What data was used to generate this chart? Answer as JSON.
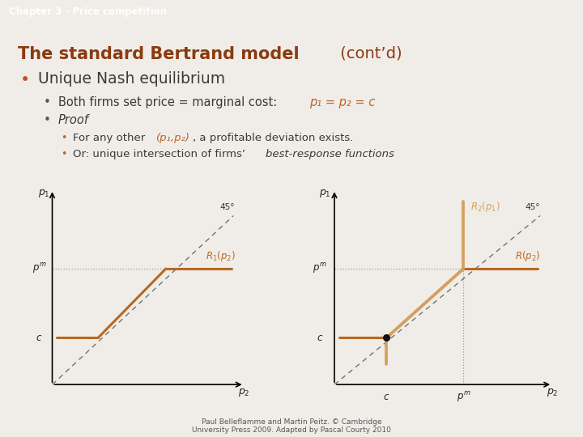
{
  "bg_color": "#f0ede8",
  "header_bg": "#c0522a",
  "header_text": "Chapter 3 - Price competition",
  "header_text_color": "#ffffff",
  "title_bold": "The standard Bertrand model",
  "title_normal": " (cont’d)",
  "title_color": "#8b3a10",
  "bullet1_text": "Unique Nash equilibrium",
  "bullet2a_text": "Both firms set price = marginal cost: ",
  "bullet2a_math": "p₁ = p₂ = c",
  "bullet2b_text": "Proof",
  "bullet3a_text": "For any other ",
  "bullet3a_math": "(p₁,p₂)",
  "bullet3a_text2": ", a profitable deviation exists.",
  "bullet3b_text": "Or: unique intersection of firms’ ",
  "bullet3b_italic": "best-response functions",
  "text_color": "#3a3a3a",
  "math_color": "#c0602a",
  "footer_text": "Paul Belleflamme and Martin Peitz. © Cambridge\nUniversity Press 2009. Adapted by Pascal Courty 2010",
  "graph_line_color": "#b86820",
  "graph_line_color2": "#d4a060",
  "graph_dash_color": "#999999",
  "dot_color": "#111111",
  "c_val": 0.25,
  "pm_val": 0.62
}
